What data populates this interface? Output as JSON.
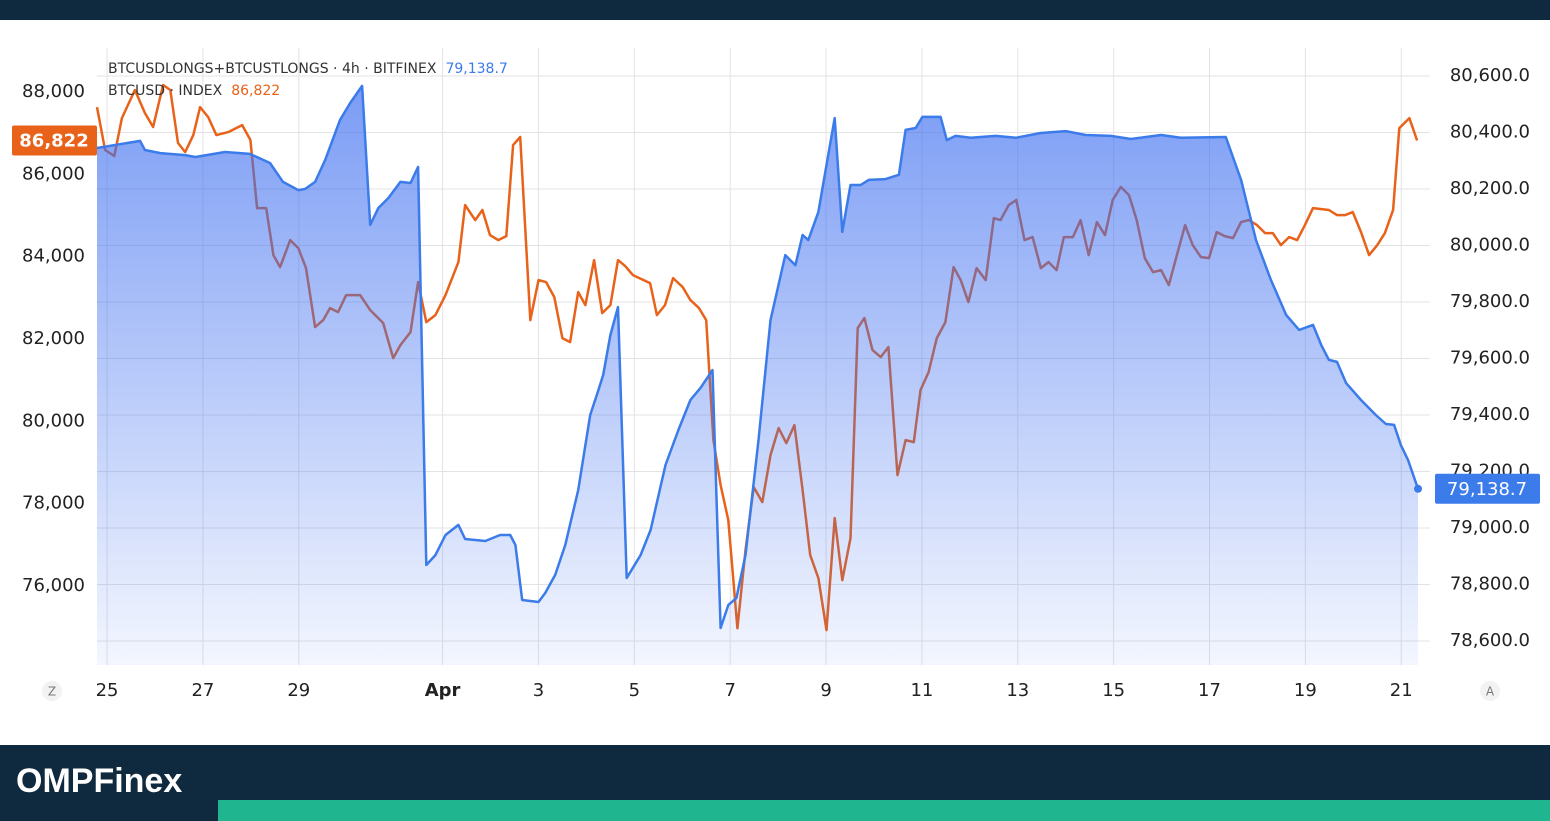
{
  "chart_data": {
    "type": "line",
    "series": [
      {
        "name": "BTCUSDLONGS+BTCUSTLONGS · 4h · BITFINEX",
        "color": "#3b7bea",
        "axis": "y2",
        "area": true,
        "last_label": "79,138.7",
        "x": [
          24.79,
          25.69,
          25.79,
          26.11,
          26.63,
          26.84,
          27.46,
          27.98,
          28.4,
          28.67,
          28.99,
          29.13,
          29.34,
          29.55,
          29.86,
          30.07,
          30.32,
          30.49,
          30.66,
          30.87,
          31.12,
          31.33,
          31.49,
          31.66,
          31.85,
          32.06,
          32.33,
          32.47,
          32.89,
          33.2,
          33.41,
          33.52,
          33.66,
          34.0,
          34.14,
          34.35,
          34.56,
          34.83,
          35.08,
          35.25,
          35.35,
          35.5,
          35.66,
          35.84,
          36.13,
          36.34,
          36.65,
          36.92,
          37.17,
          37.38,
          37.63,
          37.8,
          37.96,
          38.13,
          38.32,
          38.59,
          38.84,
          39.15,
          39.36,
          39.51,
          39.63,
          39.84,
          40.01,
          40.18,
          40.34,
          40.51,
          40.72,
          40.89,
          41.24,
          41.52,
          41.66,
          41.87,
          42.01,
          42.39,
          42.52,
          42.7,
          43.02,
          43.54,
          43.96,
          44.48,
          45.0,
          45.42,
          45.94,
          46.36,
          46.99,
          47.4,
          48.34,
          48.66,
          48.97,
          49.28,
          49.6,
          49.87,
          50.16,
          50.33,
          50.49,
          50.66,
          50.85,
          51.16,
          51.47,
          51.68,
          51.85,
          51.99,
          52.14,
          52.35
        ],
        "values": [
          80345,
          80370,
          80338,
          80327,
          80320,
          80313,
          80331,
          80324,
          80292,
          80225,
          80196,
          80200,
          80225,
          80303,
          80444,
          80504,
          80565,
          80073,
          80133,
          80168,
          80225,
          80221,
          80278,
          78869,
          78904,
          78975,
          79011,
          78961,
          78954,
          78975,
          78975,
          78940,
          78745,
          78738,
          78770,
          78834,
          78940,
          79134,
          79400,
          79488,
          79542,
          79683,
          79782,
          78823,
          78904,
          78993,
          79223,
          79347,
          79453,
          79496,
          79559,
          78646,
          78727,
          78752,
          78904,
          79311,
          79736,
          79966,
          79930,
          80037,
          80019,
          80119,
          80285,
          80451,
          80048,
          80214,
          80214,
          80232,
          80235,
          80250,
          80409,
          80416,
          80455,
          80455,
          80373,
          80388,
          80381,
          80388,
          80381,
          80398,
          80405,
          80391,
          80388,
          80377,
          80391,
          80381,
          80384,
          80232,
          80019,
          79878,
          79754,
          79701,
          79719,
          79648,
          79595,
          79588,
          79513,
          79453,
          79400,
          79368,
          79365,
          79294,
          79241,
          79138.7
        ]
      },
      {
        "name": "BTCUSD · INDEX",
        "color": "#e8621a",
        "axis": "y",
        "last_label": "86,822",
        "x": [
          24.79,
          24.96,
          25.15,
          25.31,
          25.58,
          25.79,
          25.96,
          26.17,
          26.32,
          26.48,
          26.63,
          26.8,
          26.94,
          27.11,
          27.28,
          27.53,
          27.82,
          27.99,
          28.13,
          28.32,
          28.47,
          28.61,
          28.82,
          28.99,
          29.15,
          29.34,
          29.51,
          29.65,
          29.82,
          29.99,
          30.28,
          30.49,
          30.76,
          30.97,
          31.12,
          31.33,
          31.49,
          31.66,
          31.85,
          32.06,
          32.33,
          32.47,
          32.68,
          32.83,
          32.99,
          33.16,
          33.33,
          33.47,
          33.62,
          33.83,
          34.0,
          34.16,
          34.33,
          34.5,
          34.66,
          34.83,
          34.98,
          35.16,
          35.33,
          35.5,
          35.66,
          35.81,
          35.97,
          36.33,
          36.47,
          36.64,
          36.81,
          37.01,
          37.17,
          37.35,
          37.5,
          37.65,
          37.8,
          37.96,
          38.15,
          38.32,
          38.49,
          38.67,
          38.84,
          39.01,
          39.17,
          39.34,
          39.51,
          39.67,
          39.84,
          40.01,
          40.18,
          40.34,
          40.51,
          40.66,
          40.8,
          40.97,
          41.14,
          41.3,
          41.49,
          41.66,
          41.83,
          41.97,
          42.14,
          42.31,
          42.49,
          42.66,
          42.81,
          42.97,
          43.14,
          43.33,
          43.5,
          43.64,
          43.81,
          43.97,
          44.14,
          44.31,
          44.48,
          44.64,
          44.81,
          44.96,
          45.15,
          45.31,
          45.48,
          45.65,
          45.82,
          45.98,
          46.15,
          46.32,
          46.48,
          46.65,
          46.82,
          46.99,
          47.15,
          47.32,
          47.49,
          47.65,
          47.82,
          47.99,
          48.15,
          48.32,
          48.49,
          48.66,
          48.82,
          48.99,
          49.16,
          49.32,
          49.49,
          49.66,
          49.83,
          49.99,
          50.16,
          50.49,
          50.66,
          50.83,
          50.99,
          51.16,
          51.33,
          51.5,
          51.66,
          51.83,
          51.96,
          52.17,
          52.33
        ],
        "values": [
          87635,
          86591,
          86445,
          87368,
          88049,
          87490,
          87150,
          88170,
          88049,
          86761,
          86542,
          86955,
          87635,
          87392,
          86955,
          87028,
          87198,
          86834,
          85181,
          85181,
          84039,
          83748,
          84404,
          84209,
          83723,
          82290,
          82460,
          82751,
          82654,
          83067,
          83067,
          82702,
          82387,
          81536,
          81852,
          82168,
          83383,
          82411,
          82581,
          83067,
          83869,
          85254,
          84890,
          85133,
          84525,
          84404,
          84501,
          86712,
          86907,
          82460,
          83432,
          83383,
          83018,
          82022,
          81925,
          83140,
          82824,
          83918,
          82630,
          82824,
          83918,
          83772,
          83553,
          83359,
          82581,
          82824,
          83480,
          83261,
          82946,
          82751,
          82460,
          79544,
          78450,
          77600,
          74975,
          76871,
          78402,
          78037,
          79179,
          79835,
          79471,
          79908,
          78329,
          76749,
          76190,
          74927,
          77648,
          76142,
          77162,
          82265,
          82508,
          81731,
          81560,
          81803,
          78693,
          79544,
          79495,
          80759,
          81196,
          82022,
          82411,
          83748,
          83432,
          82897,
          83723,
          83432,
          84938,
          84890,
          85254,
          85376,
          84404,
          84477,
          83723,
          83869,
          83675,
          84477,
          84477,
          84890,
          84039,
          84841,
          84525,
          85376,
          85692,
          85497,
          84890,
          83966,
          83626,
          83675,
          83310,
          84039,
          84768,
          84282,
          83991,
          83966,
          84598,
          84501,
          84452,
          84841,
          84890,
          84768,
          84574,
          84574,
          84282,
          84477,
          84404,
          84768,
          85181,
          85133,
          85011,
          85011,
          85084,
          84598,
          84039,
          84282,
          84574,
          85133,
          87125,
          87368,
          86822
        ]
      }
    ],
    "xlim": [
      24.79,
      52.6
    ],
    "xticks": [
      25,
      27,
      29,
      {
        "value": 32,
        "label": "Apr"
      },
      {
        "value": 34,
        "label": "3"
      },
      {
        "value": 36,
        "label": "5"
      },
      {
        "value": 38,
        "label": "7"
      },
      {
        "value": 40,
        "label": "9"
      },
      {
        "value": 42,
        "label": "11"
      },
      {
        "value": 44,
        "label": "13"
      },
      {
        "value": 46,
        "label": "15"
      },
      {
        "value": 48,
        "label": "17"
      },
      {
        "value": 50,
        "label": "19"
      },
      {
        "value": 52,
        "label": "21"
      }
    ],
    "ylim": [
      74080,
      89070
    ],
    "yticks": [
      {
        "value": 76000,
        "label": "76,000"
      },
      {
        "value": 78000,
        "label": "78,000"
      },
      {
        "value": 80000,
        "label": "80,000"
      },
      {
        "value": 82000,
        "label": "82,000"
      },
      {
        "value": 84000,
        "label": "84,000"
      },
      {
        "value": 86000,
        "label": "86,000"
      },
      {
        "value": 88000,
        "label": "88,000"
      }
    ],
    "y2lim": [
      78515,
      80699
    ],
    "y2ticks": [
      {
        "value": 78600,
        "label": "78,600.0"
      },
      {
        "value": 78800,
        "label": "78,800.0"
      },
      {
        "value": 79000,
        "label": "79,000.0"
      },
      {
        "value": 79200,
        "label": "79,200.0"
      },
      {
        "value": 79400,
        "label": "79,400.0"
      },
      {
        "value": 79600,
        "label": "79,600.0"
      },
      {
        "value": 79800,
        "label": "79,800.0"
      },
      {
        "value": 80000,
        "label": "80,000.0"
      },
      {
        "value": 80200,
        "label": "80,200.0"
      },
      {
        "value": 80400,
        "label": "80,400.0"
      },
      {
        "value": 80600,
        "label": "80,600.0"
      }
    ],
    "grid": true
  },
  "ui": {
    "left_button": "Z",
    "right_button": "A",
    "brand": "OMPFinex"
  }
}
